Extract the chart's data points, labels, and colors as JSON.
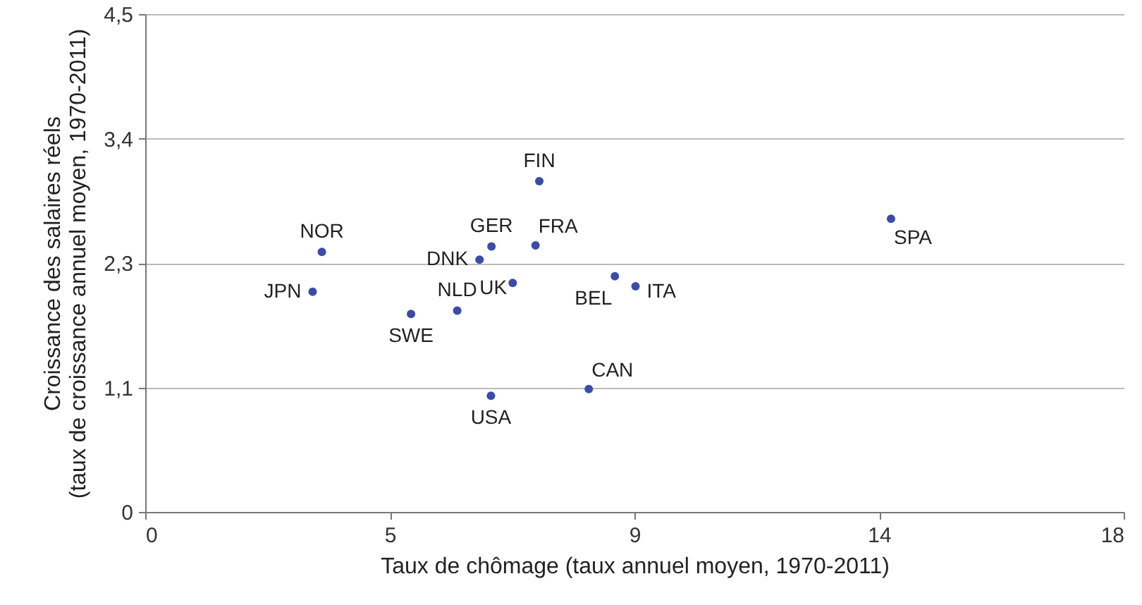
{
  "chart_data": {
    "type": "scatter",
    "xlabel": "Taux de chômage (taux annuel moyen, 1970-2011)",
    "ylabel": "Croissance des salaires réels\n(taux de croissance annuel moyen, 1970-2011)",
    "x": [
      3.25,
      3.08,
      4.89,
      5.74,
      6.15,
      6.37,
      6.76,
      7.18,
      7.25,
      8.64,
      9.02,
      8.16,
      6.36,
      13.72
    ],
    "series": [
      {
        "color": "#3b4ba8",
        "values": [
          2.35,
          1.99,
          1.79,
          1.82,
          2.28,
          2.4,
          2.07,
          2.41,
          2.99,
          2.13,
          2.04,
          1.11,
          1.05,
          2.65
        ]
      }
    ],
    "xlim": [
      0,
      18
    ],
    "xticks": [
      0,
      {
        "value": 4.5,
        "label": "5"
      },
      9,
      {
        "value": 13.5,
        "label": "14"
      },
      18
    ],
    "ylim": [
      0,
      4.5
    ],
    "yticks": [
      0,
      {
        "value": 1.125,
        "label": "1,1"
      },
      {
        "value": 2.25,
        "label": "2,3"
      },
      {
        "value": 3.375,
        "label": "3,4"
      },
      {
        "value": 4.5,
        "label": "4,5"
      }
    ],
    "grid": "y",
    "marker": "circle",
    "annotations": [
      {
        "text": "NOR",
        "x": 3.25,
        "y": 2.35
      },
      {
        "text": "JPN",
        "x": 3.08,
        "y": 1.99
      },
      {
        "text": "SWE",
        "x": 4.89,
        "y": 1.79
      },
      {
        "text": "NLD",
        "x": 5.74,
        "y": 1.82
      },
      {
        "text": "DNK",
        "x": 6.15,
        "y": 2.28
      },
      {
        "text": "GER",
        "x": 6.37,
        "y": 2.4
      },
      {
        "text": "UK",
        "x": 6.76,
        "y": 2.07
      },
      {
        "text": "FRA",
        "x": 7.18,
        "y": 2.41
      },
      {
        "text": "FIN",
        "x": 7.25,
        "y": 2.99
      },
      {
        "text": "BEL",
        "x": 8.64,
        "y": 2.13
      },
      {
        "text": "ITA",
        "x": 9.02,
        "y": 2.04
      },
      {
        "text": "CAN",
        "x": 8.16,
        "y": 1.11
      },
      {
        "text": "USA",
        "x": 6.36,
        "y": 1.05
      },
      {
        "text": "SPA",
        "x": 13.72,
        "y": 2.65
      }
    ]
  }
}
